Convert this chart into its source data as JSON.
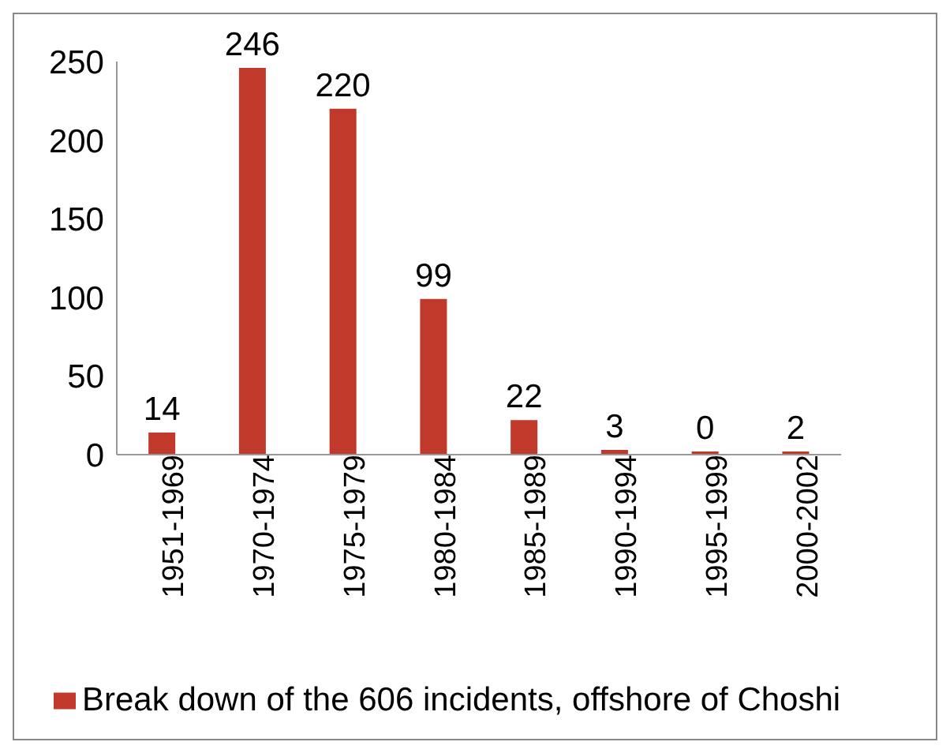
{
  "chart_data": {
    "type": "bar",
    "categories": [
      "1951-1969",
      "1970-1974",
      "1975-1979",
      "1980-1984",
      "1985-1989",
      "1990-1994",
      "1995-1999",
      "2000-2002"
    ],
    "series": [
      {
        "name": "Break down of the 606 incidents, offshore of Choshi",
        "color": "#c0392b",
        "values": [
          14,
          246,
          220,
          99,
          22,
          3,
          0,
          2
        ]
      }
    ],
    "ylim": [
      0,
      250
    ],
    "yticks": [
      0,
      50,
      100,
      150,
      200,
      250
    ],
    "data_labels": true,
    "legend": "bottom",
    "grid": false
  }
}
